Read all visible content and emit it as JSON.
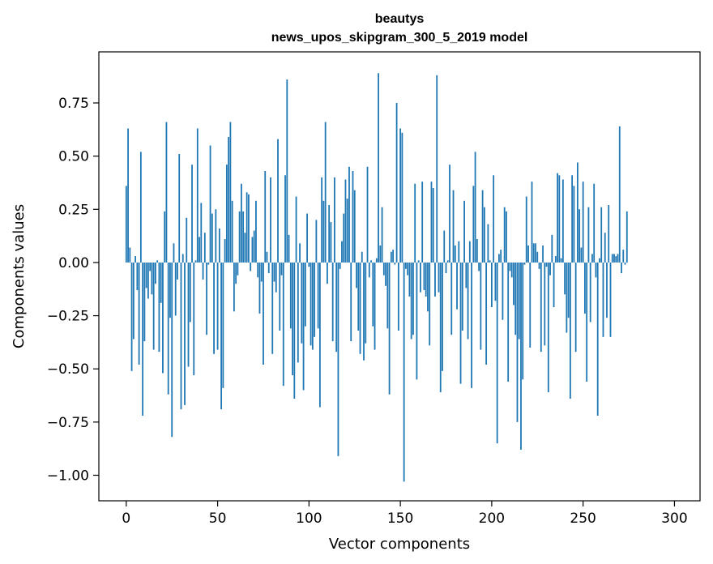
{
  "chart_data": {
    "type": "bar",
    "title": "beautys",
    "subtitle": "news_upos_skipgram_300_5_2019 model",
    "xlabel": "Vector components",
    "ylabel": "Components values",
    "xlim": [
      -15,
      314
    ],
    "ylim": [
      -1.12,
      0.99
    ],
    "xticks": [
      0,
      50,
      100,
      150,
      200,
      250,
      300
    ],
    "xtick_labels": [
      "0",
      "50",
      "100",
      "150",
      "200",
      "250",
      "300"
    ],
    "yticks": [
      -1.0,
      -0.75,
      -0.5,
      -0.25,
      0.0,
      0.25,
      0.5,
      0.75
    ],
    "ytick_labels": [
      "−1.00",
      "−0.75",
      "−0.50",
      "−0.25",
      "0.00",
      "0.25",
      "0.50",
      "0.75"
    ],
    "bar_color": "#1f77b4",
    "grid": false,
    "series": [
      {
        "name": "beautys",
        "values": [
          0.36,
          0.63,
          0.07,
          -0.51,
          -0.36,
          0.03,
          -0.13,
          -0.48,
          0.52,
          -0.72,
          -0.37,
          -0.12,
          -0.17,
          -0.04,
          -0.15,
          -0.41,
          -0.1,
          0.01,
          -0.42,
          -0.19,
          -0.52,
          0.24,
          0.66,
          -0.62,
          -0.26,
          -0.82,
          0.09,
          -0.25,
          -0.08,
          0.51,
          -0.69,
          0.04,
          -0.67,
          0.21,
          -0.49,
          -0.28,
          0.46,
          -0.53,
          0.01,
          0.63,
          0.12,
          0.28,
          -0.08,
          0.14,
          -0.34,
          -0.01,
          0.55,
          0.23,
          -0.43,
          0.25,
          -0.41,
          0.16,
          -0.69,
          -0.59,
          0.11,
          0.46,
          0.59,
          0.66,
          0.29,
          -0.23,
          -0.1,
          -0.06,
          0.24,
          0.37,
          0.24,
          0.14,
          0.33,
          0.32,
          -0.04,
          0.12,
          0.15,
          0.29,
          -0.07,
          -0.24,
          -0.09,
          -0.48,
          0.43,
          0.05,
          -0.05,
          0.4,
          -0.43,
          -0.09,
          -0.14,
          0.58,
          -0.32,
          -0.06,
          -0.58,
          0.41,
          0.86,
          0.13,
          -0.31,
          -0.53,
          -0.64,
          0.31,
          -0.47,
          0.09,
          -0.38,
          -0.6,
          -0.3,
          0.23,
          -0.02,
          -0.39,
          -0.41,
          -0.35,
          0.2,
          -0.31,
          -0.68,
          0.4,
          0.29,
          0.66,
          -0.1,
          0.27,
          0.19,
          -0.37,
          0.4,
          -0.42,
          -0.91,
          -0.03,
          0.1,
          0.23,
          0.39,
          0.3,
          0.45,
          -0.37,
          0.43,
          0.34,
          -0.12,
          -0.32,
          -0.43,
          0.05,
          -0.46,
          -0.38,
          0.45,
          -0.07,
          0.01,
          -0.3,
          -0.41,
          0.02,
          0.89,
          0.08,
          0.26,
          -0.06,
          -0.11,
          -0.31,
          -0.62,
          0.05,
          0.06,
          -0.01,
          0.75,
          -0.32,
          0.63,
          0.61,
          -1.03,
          -0.03,
          -0.06,
          -0.16,
          -0.36,
          -0.34,
          0.37,
          -0.55,
          0.01,
          -0.14,
          0.38,
          -0.13,
          -0.16,
          -0.23,
          -0.39,
          0.38,
          0.35,
          -0.16,
          0.88,
          -0.14,
          -0.61,
          -0.51,
          0.15,
          -0.05,
          0.01,
          0.46,
          -0.34,
          0.34,
          0.08,
          -0.22,
          0.1,
          -0.57,
          -0.32,
          0.29,
          -0.12,
          -0.36,
          0.1,
          -0.59,
          0.36,
          0.52,
          0.11,
          -0.04,
          -0.41,
          0.34,
          0.26,
          -0.48,
          0.18,
          0.01,
          -0.21,
          0.41,
          -0.18,
          -0.85,
          0.04,
          0.06,
          -0.27,
          0.26,
          0.24,
          -0.56,
          -0.04,
          -0.07,
          -0.2,
          -0.34,
          -0.75,
          -0.36,
          -0.88,
          -0.55,
          -0.01,
          0.31,
          0.08,
          -0.4,
          0.38,
          0.09,
          0.09,
          0.05,
          -0.03,
          -0.42,
          0.08,
          -0.39,
          -0.02,
          -0.61,
          -0.06,
          0.13,
          -0.21,
          0.03,
          0.42,
          0.41,
          0.02,
          0.39,
          -0.15,
          -0.33,
          -0.26,
          -0.64,
          0.41,
          0.36,
          -0.42,
          0.47,
          0.25,
          0.07,
          0.38,
          -0.24,
          -0.56,
          0.26,
          -0.28,
          0.04,
          0.37,
          -0.07,
          -0.72,
          0.02,
          0.26,
          -0.35,
          0.14,
          -0.26,
          0.27,
          -0.35,
          0.04,
          0.04,
          0.03,
          0.04,
          0.64,
          -0.05,
          0.06,
          -0.01,
          0.24
        ]
      }
    ]
  }
}
